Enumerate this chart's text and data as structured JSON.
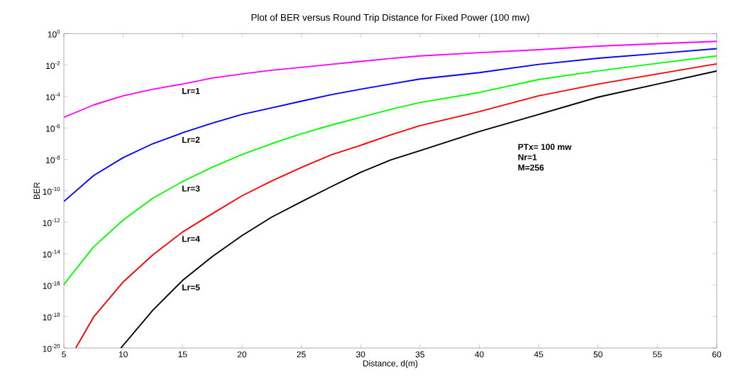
{
  "chart_data": {
    "type": "line",
    "title": "Plot of BER versus Round Trip Distance for Fixed Power (100 mw)",
    "xlabel": "Distance, d(m)",
    "ylabel": "BER",
    "log": "y",
    "grid": false,
    "legend": false,
    "marker": "none",
    "line_style": "solid",
    "xlim": [
      5,
      60
    ],
    "xticks": [
      5,
      10,
      15,
      20,
      25,
      30,
      35,
      40,
      45,
      50,
      55,
      60
    ],
    "ylim": [
      1e-20,
      1
    ],
    "yticks": [
      {
        "value": 1e-20,
        "label": "10$^{-20}$"
      },
      {
        "value": 1e-18,
        "label": "10$^{-18}$"
      },
      {
        "value": 1e-16,
        "label": "10$^{-16}$"
      },
      {
        "value": 1e-14,
        "label": "10$^{-14}$"
      },
      {
        "value": 1e-12,
        "label": "10$^{-12}$"
      },
      {
        "value": 1e-10,
        "label": "10$^{-10}$"
      },
      {
        "value": 1e-08,
        "label": "10$^{-8}$"
      },
      {
        "value": 1e-06,
        "label": "10$^{-6}$"
      },
      {
        "value": 0.0001,
        "label": "10$^{-4}$"
      },
      {
        "value": 0.01,
        "label": "10$^{-2}$"
      },
      {
        "value": 1,
        "label": "10$^{0}$"
      }
    ],
    "x": [
      5,
      7.5,
      10,
      12.5,
      15,
      17.5,
      20,
      22.5,
      25,
      27.5,
      30,
      32.5,
      35,
      40,
      45,
      50,
      55,
      60
    ],
    "series": [
      {
        "name": "Lr=1",
        "color": "#ff00ff",
        "values": [
          4.7e-06,
          2.9e-05,
          0.00011,
          0.00029,
          0.00062,
          0.0015,
          0.0027,
          0.0047,
          0.0071,
          0.011,
          0.017,
          0.026,
          0.038,
          0.062,
          0.095,
          0.16,
          0.23,
          0.32
        ]
      },
      {
        "name": "Lr=2",
        "color": "#0000ff",
        "values": [
          2.1e-11,
          9.3e-10,
          1.3e-08,
          1e-07,
          4.9e-07,
          2e-06,
          7.2e-06,
          1.9e-05,
          5e-05,
          0.00013,
          0.00029,
          0.00062,
          0.0013,
          0.0033,
          0.011,
          0.027,
          0.054,
          0.11
        ]
      },
      {
        "name": "Lr=3",
        "color": "#00ff00",
        "values": [
          1.1e-16,
          2.7e-14,
          1.4e-12,
          3.4e-11,
          3.9e-10,
          3.2e-09,
          2e-08,
          1e-07,
          4.2e-07,
          1.5e-06,
          4.8e-06,
          1.5e-05,
          4.1e-05,
          0.00018,
          0.0012,
          0.0042,
          0.013,
          0.038
        ]
      },
      {
        "name": "Lr=4",
        "color": "#ff0000",
        "x": [
          6,
          7.5,
          10,
          12.5,
          15,
          17.5,
          20,
          22.5,
          25,
          27.5,
          30,
          32.5,
          35,
          40,
          45,
          50,
          55,
          60
        ],
        "values": [
          1e-20,
          9.3e-19,
          1.6e-16,
          8.5e-15,
          2.4e-13,
          3.5e-12,
          4.8e-11,
          4.2e-10,
          3e-09,
          1.9e-08,
          7.9e-08,
          3.5e-07,
          1.4e-06,
          1.1e-05,
          0.00011,
          0.00062,
          0.0027,
          0.012
        ]
      },
      {
        "name": "Lr=5",
        "color": "#000000",
        "x": [
          9.8,
          12.5,
          15,
          17.5,
          20,
          22.5,
          25,
          27.5,
          30,
          32.5,
          35,
          40,
          45,
          50,
          55,
          60
        ],
        "values": [
          1e-20,
          2.6e-18,
          2e-16,
          6.6e-15,
          1.4e-13,
          2.1e-12,
          2e-11,
          1.8e-10,
          1.5e-09,
          9.1e-09,
          3.6e-08,
          5.9e-07,
          7.2e-06,
          9.1e-05,
          0.00062,
          0.0042
        ]
      }
    ],
    "annotations": [
      "PTx= 100 mw",
      "Nr=1",
      "M=256"
    ]
  }
}
